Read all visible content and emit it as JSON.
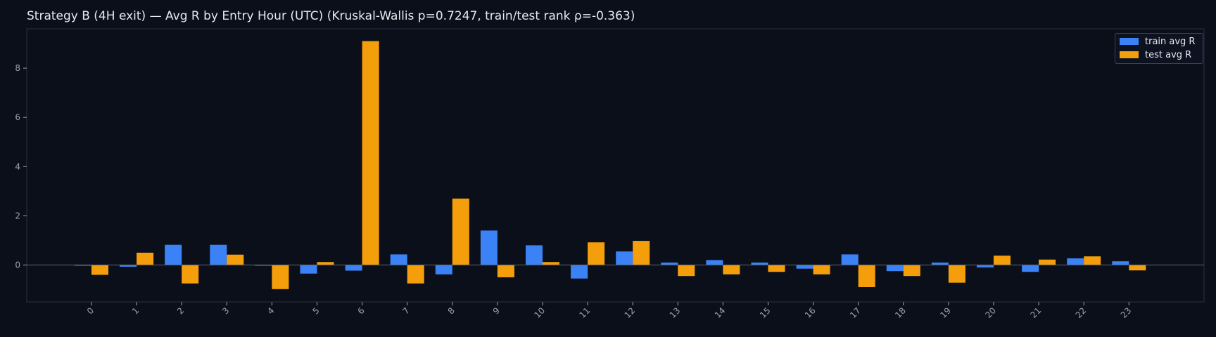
{
  "title": "Strategy B (4H exit) — Avg R by Entry Hour (UTC) (Kruskal-Wallis p=0.7247, train/test rank ρ=-0.363)",
  "colors": {
    "background": "#0b0f19",
    "plot_background": "#0b0f19",
    "axis": "#2a3040",
    "zero_line": "#5c6370",
    "tick_text": "#9aa3b2",
    "train": "#3b82f6",
    "test": "#f59e0b"
  },
  "chart_data": {
    "type": "bar",
    "title": "Strategy B (4H exit) — Avg R by Entry Hour (UTC) (Kruskal-Wallis p=0.7247, train/test rank ρ=-0.363)",
    "xlabel": "",
    "ylabel": "",
    "categories": [
      "0",
      "1",
      "2",
      "3",
      "4",
      "5",
      "6",
      "7",
      "8",
      "9",
      "10",
      "11",
      "12",
      "13",
      "14",
      "15",
      "16",
      "17",
      "18",
      "19",
      "20",
      "21",
      "22",
      "23"
    ],
    "series": [
      {
        "name": "train avg R",
        "color": "#3b82f6",
        "values": [
          -0.03,
          -0.07,
          0.82,
          0.82,
          -0.03,
          -0.35,
          -0.23,
          0.43,
          -0.38,
          1.4,
          0.8,
          -0.55,
          0.55,
          0.1,
          0.2,
          0.1,
          -0.15,
          0.43,
          -0.25,
          0.1,
          -0.1,
          -0.28,
          0.27,
          0.15
        ]
      },
      {
        "name": "test avg R",
        "color": "#f59e0b",
        "values": [
          -0.4,
          0.5,
          -0.75,
          0.42,
          -0.98,
          0.12,
          9.1,
          -0.75,
          2.7,
          -0.5,
          0.12,
          0.92,
          0.98,
          -0.45,
          -0.38,
          -0.28,
          -0.38,
          -0.9,
          -0.45,
          -0.72,
          0.38,
          0.22,
          0.35,
          -0.22
        ]
      }
    ],
    "yticks": [
      0,
      2,
      4,
      6,
      8
    ],
    "ylim": [
      -1.5,
      9.6
    ],
    "grid": false,
    "legend": "top-right"
  }
}
